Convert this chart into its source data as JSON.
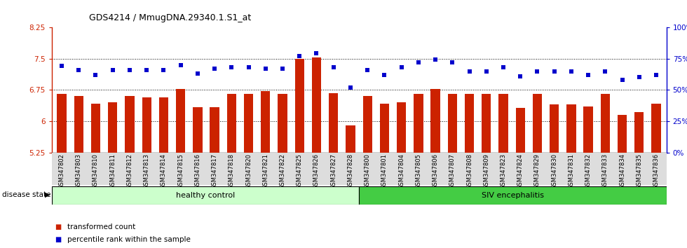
{
  "title": "GDS4214 / MmugDNA.29340.1.S1_at",
  "samples": [
    "GSM347802",
    "GSM347803",
    "GSM347810",
    "GSM347811",
    "GSM347812",
    "GSM347813",
    "GSM347814",
    "GSM347815",
    "GSM347816",
    "GSM347817",
    "GSM347818",
    "GSM347820",
    "GSM347821",
    "GSM347822",
    "GSM347825",
    "GSM347826",
    "GSM347827",
    "GSM347828",
    "GSM347800",
    "GSM347801",
    "GSM347804",
    "GSM347805",
    "GSM347806",
    "GSM347807",
    "GSM347808",
    "GSM347809",
    "GSM347823",
    "GSM347824",
    "GSM347829",
    "GSM347830",
    "GSM347831",
    "GSM347832",
    "GSM347833",
    "GSM347834",
    "GSM347835",
    "GSM347836"
  ],
  "bar_values": [
    6.65,
    6.6,
    6.42,
    6.45,
    6.6,
    6.57,
    6.57,
    6.78,
    6.33,
    6.33,
    6.65,
    6.65,
    6.72,
    6.65,
    7.5,
    7.52,
    6.67,
    5.9,
    6.6,
    6.42,
    6.45,
    6.65,
    6.77,
    6.65,
    6.65,
    6.65,
    6.65,
    6.32,
    6.65,
    6.4,
    6.4,
    6.35,
    6.65,
    6.15,
    6.22,
    6.42
  ],
  "dot_values": [
    69,
    66,
    62,
    66,
    66,
    66,
    66,
    70,
    63,
    67,
    68,
    68,
    67,
    67,
    77,
    79,
    68,
    52,
    66,
    62,
    68,
    72,
    74,
    72,
    65,
    65,
    68,
    61,
    65,
    65,
    65,
    62,
    65,
    58,
    60,
    62
  ],
  "n_healthy": 18,
  "ylim_left": [
    5.25,
    8.25
  ],
  "ylim_right": [
    0,
    100
  ],
  "yticks_left": [
    5.25,
    6.0,
    6.75,
    7.5,
    8.25
  ],
  "yticks_right": [
    0,
    25,
    50,
    75,
    100
  ],
  "ytick_labels_right": [
    "0%",
    "25%",
    "50%",
    "75%",
    "100%"
  ],
  "bar_color": "#CC2200",
  "dot_color": "#0000CC",
  "healthy_color": "#CCFFCC",
  "siv_color": "#44CC44",
  "healthy_label": "healthy control",
  "siv_label": "SIV encephalitis",
  "disease_label": "disease state",
  "legend1": "transformed count",
  "legend2": "percentile rank within the sample",
  "bg_color": "#DDDDDD",
  "plot_bg": "#FFFFFF"
}
